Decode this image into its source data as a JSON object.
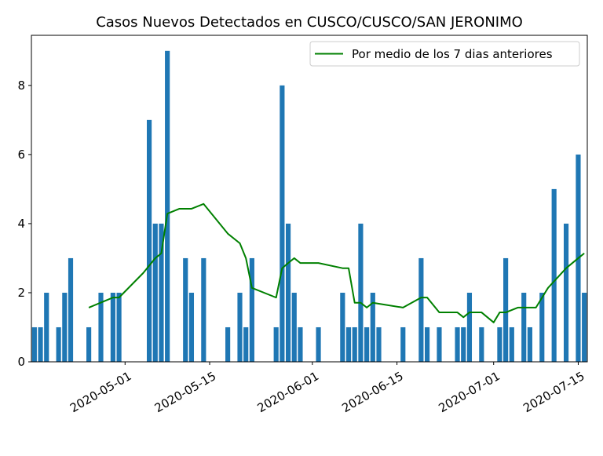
{
  "chart_data": {
    "type": "bar",
    "title": "Casos Nuevos Detectados en CUSCO/CUSCO/SAN JERONIMO",
    "xlabel": "",
    "ylabel": "",
    "ylim": [
      0,
      9.45
    ],
    "yticks": [
      "0",
      "2",
      "4",
      "6",
      "8"
    ],
    "xticks": [
      "2020-05-01",
      "2020-05-15",
      "2020-06-01",
      "2020-06-15",
      "2020-07-01",
      "2020-07-15"
    ],
    "grid": false,
    "legend": {
      "position": "top-right",
      "entries": [
        "Por medio de los 7 dias anteriores"
      ]
    },
    "colors": {
      "bars": "#1f77b4",
      "line": "#008000"
    },
    "series": [
      {
        "type": "bar",
        "x": [
          "2020-04-16",
          "2020-04-17",
          "2020-04-18",
          "2020-04-20",
          "2020-04-21",
          "2020-04-22",
          "2020-04-25",
          "2020-04-27",
          "2020-04-29",
          "2020-04-30",
          "2020-05-05",
          "2020-05-06",
          "2020-05-07",
          "2020-05-08",
          "2020-05-11",
          "2020-05-12",
          "2020-05-14",
          "2020-05-18",
          "2020-05-20",
          "2020-05-21",
          "2020-05-22",
          "2020-05-26",
          "2020-05-27",
          "2020-05-28",
          "2020-05-29",
          "2020-05-30",
          "2020-06-02",
          "2020-06-06",
          "2020-06-07",
          "2020-06-08",
          "2020-06-09",
          "2020-06-10",
          "2020-06-11",
          "2020-06-12",
          "2020-06-16",
          "2020-06-19",
          "2020-06-20",
          "2020-06-22",
          "2020-06-25",
          "2020-06-26",
          "2020-06-27",
          "2020-06-29",
          "2020-07-02",
          "2020-07-03",
          "2020-07-04",
          "2020-07-06",
          "2020-07-07",
          "2020-07-09",
          "2020-07-11",
          "2020-07-13",
          "2020-07-15",
          "2020-07-16"
        ],
        "values": [
          1,
          1,
          2,
          1,
          2,
          3,
          1,
          2,
          2,
          2,
          7,
          4,
          4,
          9,
          3,
          2,
          3,
          1,
          2,
          1,
          3,
          1,
          8,
          4,
          2,
          1,
          1,
          2,
          1,
          1,
          4,
          1,
          2,
          1,
          1,
          3,
          1,
          1,
          1,
          1,
          2,
          1,
          1,
          3,
          1,
          2,
          1,
          2,
          5,
          4,
          6,
          2
        ]
      },
      {
        "type": "line",
        "name": "Por medio de los 7 dias anteriores",
        "x": [
          "2020-04-25",
          "2020-04-29",
          "2020-04-30",
          "2020-05-04",
          "2020-05-06",
          "2020-05-07",
          "2020-05-08",
          "2020-05-10",
          "2020-05-11",
          "2020-05-12",
          "2020-05-14",
          "2020-05-18",
          "2020-05-20",
          "2020-05-21",
          "2020-05-22",
          "2020-05-26",
          "2020-05-27",
          "2020-05-28",
          "2020-05-29",
          "2020-05-30",
          "2020-06-02",
          "2020-06-06",
          "2020-06-07",
          "2020-06-08",
          "2020-06-09",
          "2020-06-10",
          "2020-06-11",
          "2020-06-16",
          "2020-06-19",
          "2020-06-20",
          "2020-06-22",
          "2020-06-25",
          "2020-06-26",
          "2020-06-27",
          "2020-06-29",
          "2020-07-01",
          "2020-07-02",
          "2020-07-03",
          "2020-07-05",
          "2020-07-08",
          "2020-07-10",
          "2020-07-13",
          "2020-07-15",
          "2020-07-16"
        ],
        "values": [
          1.57,
          1.86,
          1.86,
          2.57,
          3.0,
          3.14,
          4.29,
          4.43,
          4.43,
          4.43,
          4.57,
          3.71,
          3.43,
          3.0,
          2.14,
          1.86,
          2.71,
          2.86,
          3.0,
          2.86,
          2.86,
          2.71,
          2.71,
          1.71,
          1.71,
          1.57,
          1.71,
          1.57,
          1.86,
          1.86,
          1.43,
          1.43,
          1.29,
          1.43,
          1.43,
          1.14,
          1.43,
          1.43,
          1.57,
          1.57,
          2.14,
          2.71,
          3.0,
          3.14
        ]
      }
    ]
  }
}
